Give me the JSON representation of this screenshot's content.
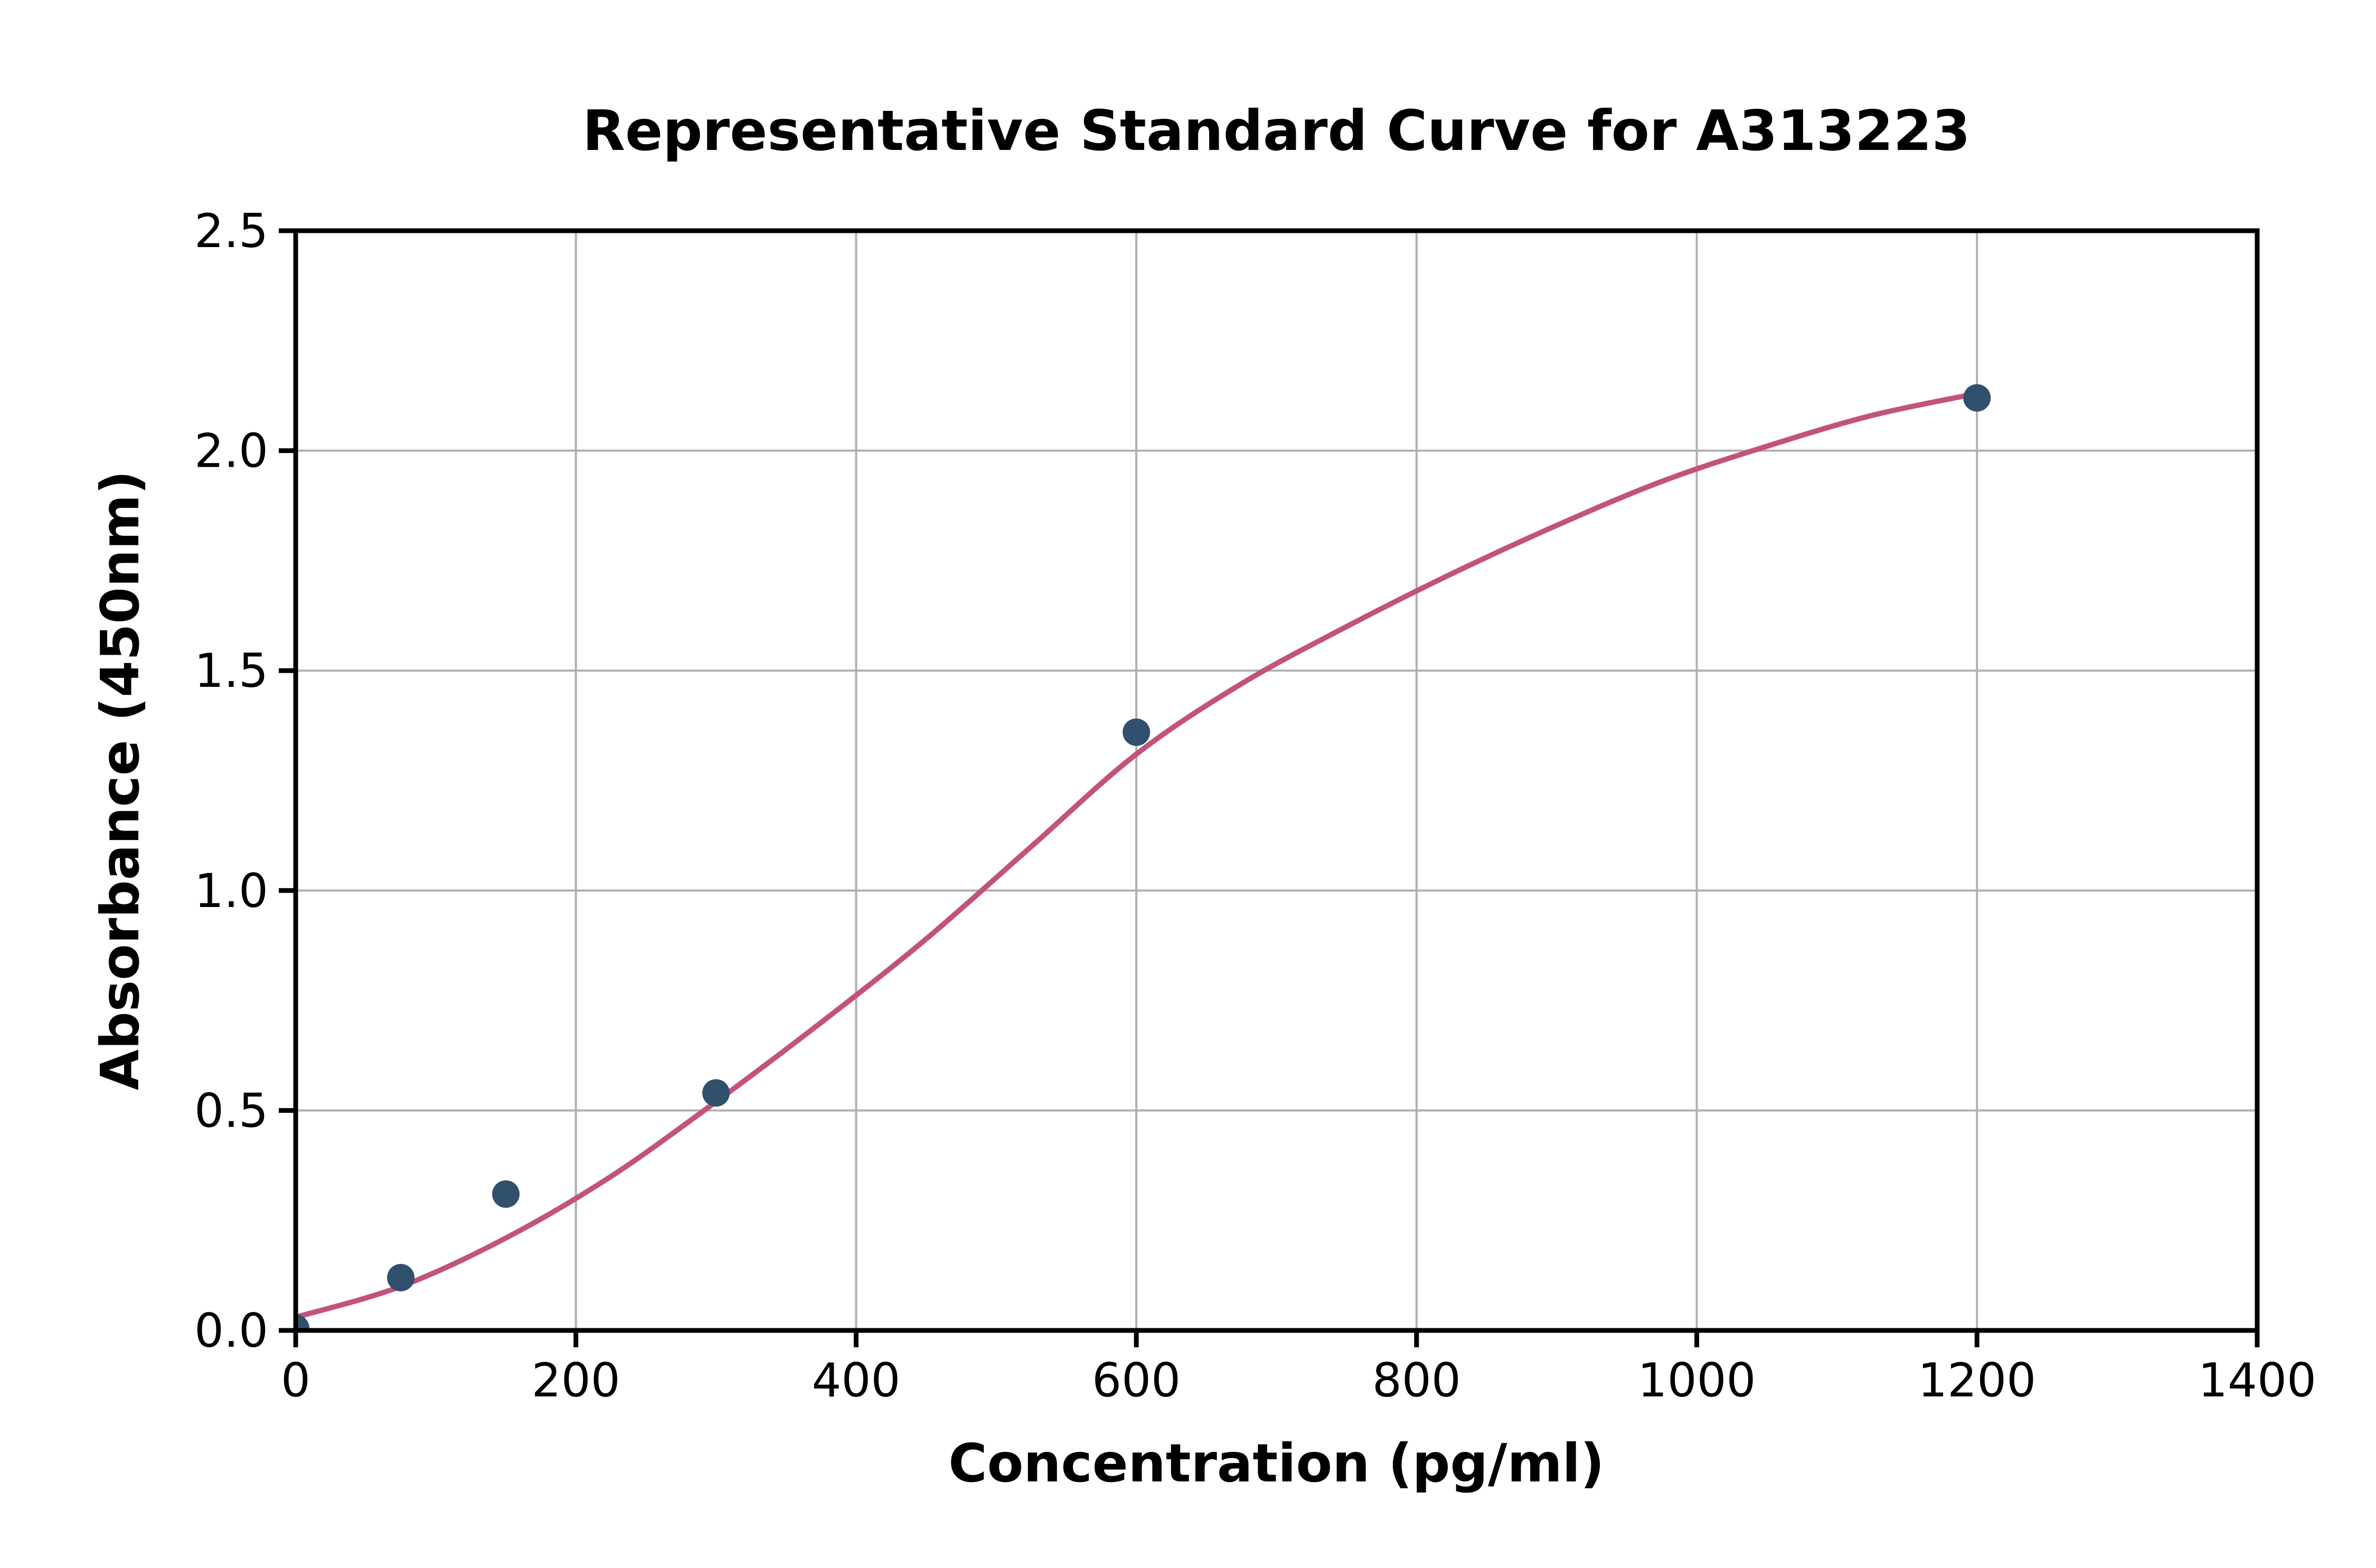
{
  "chart_data": {
    "type": "scatter",
    "title": "Representative Standard Curve for A313223",
    "xlabel": "Concentration (pg/ml)",
    "ylabel": "Absorbance (450nm)",
    "xlim": [
      0,
      1400
    ],
    "ylim": [
      0,
      2.5
    ],
    "grid": true,
    "legend": "none",
    "x_axis": {
      "tick_values": [
        0,
        200,
        400,
        600,
        800,
        1000,
        1200,
        1400
      ],
      "tick_labels": [
        "0",
        "200",
        "400",
        "600",
        "800",
        "1000",
        "1200",
        "1400"
      ]
    },
    "y_axis": {
      "tick_values": [
        0,
        0.5,
        1.0,
        1.5,
        2.0,
        2.5
      ],
      "tick_labels": [
        "0.0",
        "0.5",
        "1.0",
        "1.5",
        "2.0",
        "2.5"
      ]
    },
    "series": [
      {
        "name": "standard-points",
        "type": "scatter",
        "color": "#31506d",
        "x": [
          0,
          75,
          150,
          300,
          600,
          1200
        ],
        "y": [
          0.005,
          0.12,
          0.31,
          0.54,
          1.36,
          2.12
        ]
      },
      {
        "name": "fitted-curve",
        "type": "line",
        "color": "#c2537d",
        "x": [
          0,
          75,
          150,
          225,
          300,
          375,
          450,
          525,
          600,
          675,
          750,
          825,
          900,
          975,
          1050,
          1125,
          1200
        ],
        "y": [
          0.03,
          0.1,
          0.21,
          0.35,
          0.52,
          0.7,
          0.89,
          1.1,
          1.31,
          1.47,
          1.6,
          1.72,
          1.83,
          1.93,
          2.01,
          2.08,
          2.13
        ]
      }
    ],
    "colors": {
      "grid": "#b0b0b0",
      "axis": "#000000",
      "text": "#000000",
      "background": "#ffffff"
    }
  }
}
